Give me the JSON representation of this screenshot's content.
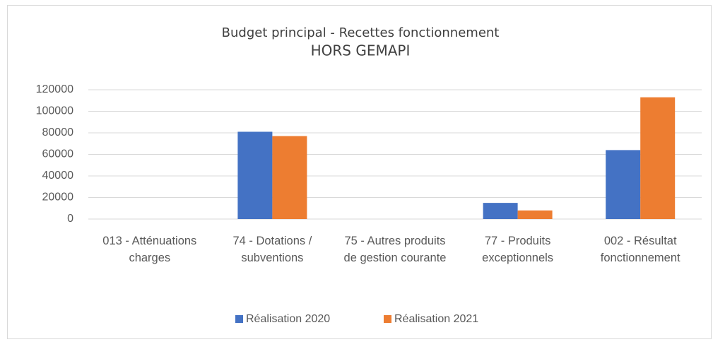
{
  "chart_data": {
    "type": "bar",
    "title": "Budget principal - Recettes fonctionnement",
    "subtitle": "HORS GEMAPI",
    "categories": [
      "013 - Atténuations charges",
      "74 - Dotations / subventions",
      "75 - Autres produits de gestion courante",
      "77 - Produits exceptionnels",
      "002 - Résultat fonctionnement"
    ],
    "series": [
      {
        "name": "Réalisation 2020",
        "color": "#4472c4",
        "values": [
          0,
          81000,
          0,
          15000,
          64000
        ]
      },
      {
        "name": "Réalisation 2021",
        "color": "#ed7d31",
        "values": [
          0,
          77000,
          0,
          8000,
          113000
        ]
      }
    ],
    "ylim": [
      0,
      120000
    ],
    "yticks": [
      0,
      20000,
      40000,
      60000,
      80000,
      100000,
      120000
    ],
    "grid": true,
    "legend": "bottom"
  }
}
